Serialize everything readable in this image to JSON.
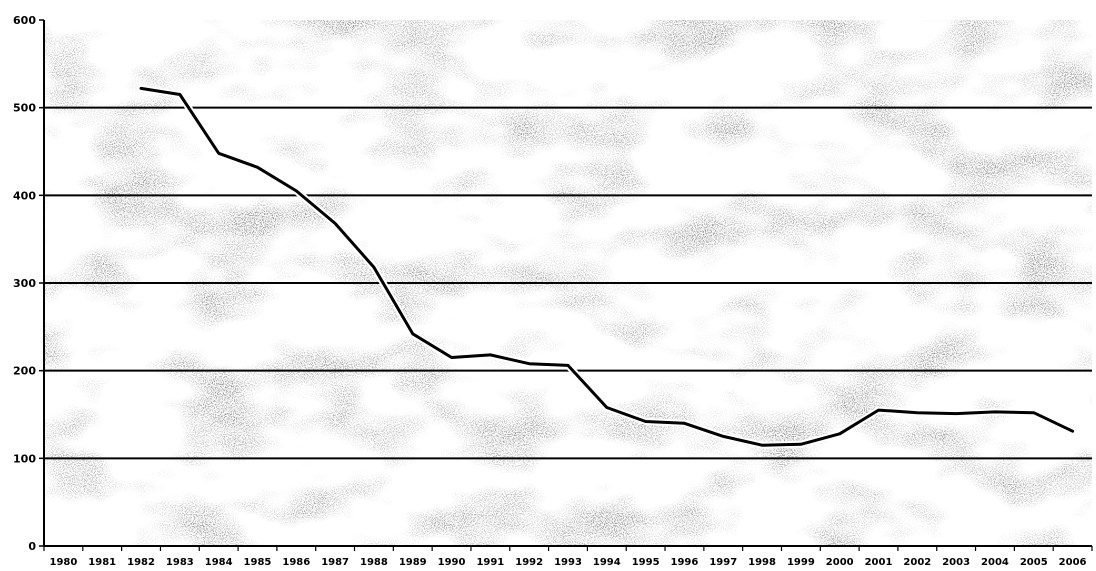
{
  "chart_data": {
    "type": "line",
    "title": "",
    "xlabel": "",
    "ylabel": "",
    "categories": [
      "1980",
      "1981",
      "1982",
      "1983",
      "1984",
      "1985",
      "1986",
      "1987",
      "1988",
      "1989",
      "1990",
      "1991",
      "1992",
      "1993",
      "1994",
      "1995",
      "1996",
      "1997",
      "1998",
      "1999",
      "2000",
      "2001",
      "2002",
      "2003",
      "2004",
      "2005",
      "2006"
    ],
    "y_ticks": [
      "0",
      "100",
      "200",
      "300",
      "400",
      "500",
      "600"
    ],
    "ylim": [
      0,
      600
    ],
    "grid": true,
    "legend": "none",
    "series": [
      {
        "values": [
          null,
          null,
          522,
          515,
          448,
          432,
          405,
          368,
          318,
          242,
          215,
          218,
          208,
          206,
          158,
          142,
          140,
          125,
          115,
          116,
          128,
          155,
          152,
          151,
          153,
          152,
          131
        ]
      }
    ]
  },
  "colors": {
    "line": "#000000",
    "line_halo": "#ffffff",
    "grid": "#000000",
    "background_texture": "#8a8a8a"
  }
}
